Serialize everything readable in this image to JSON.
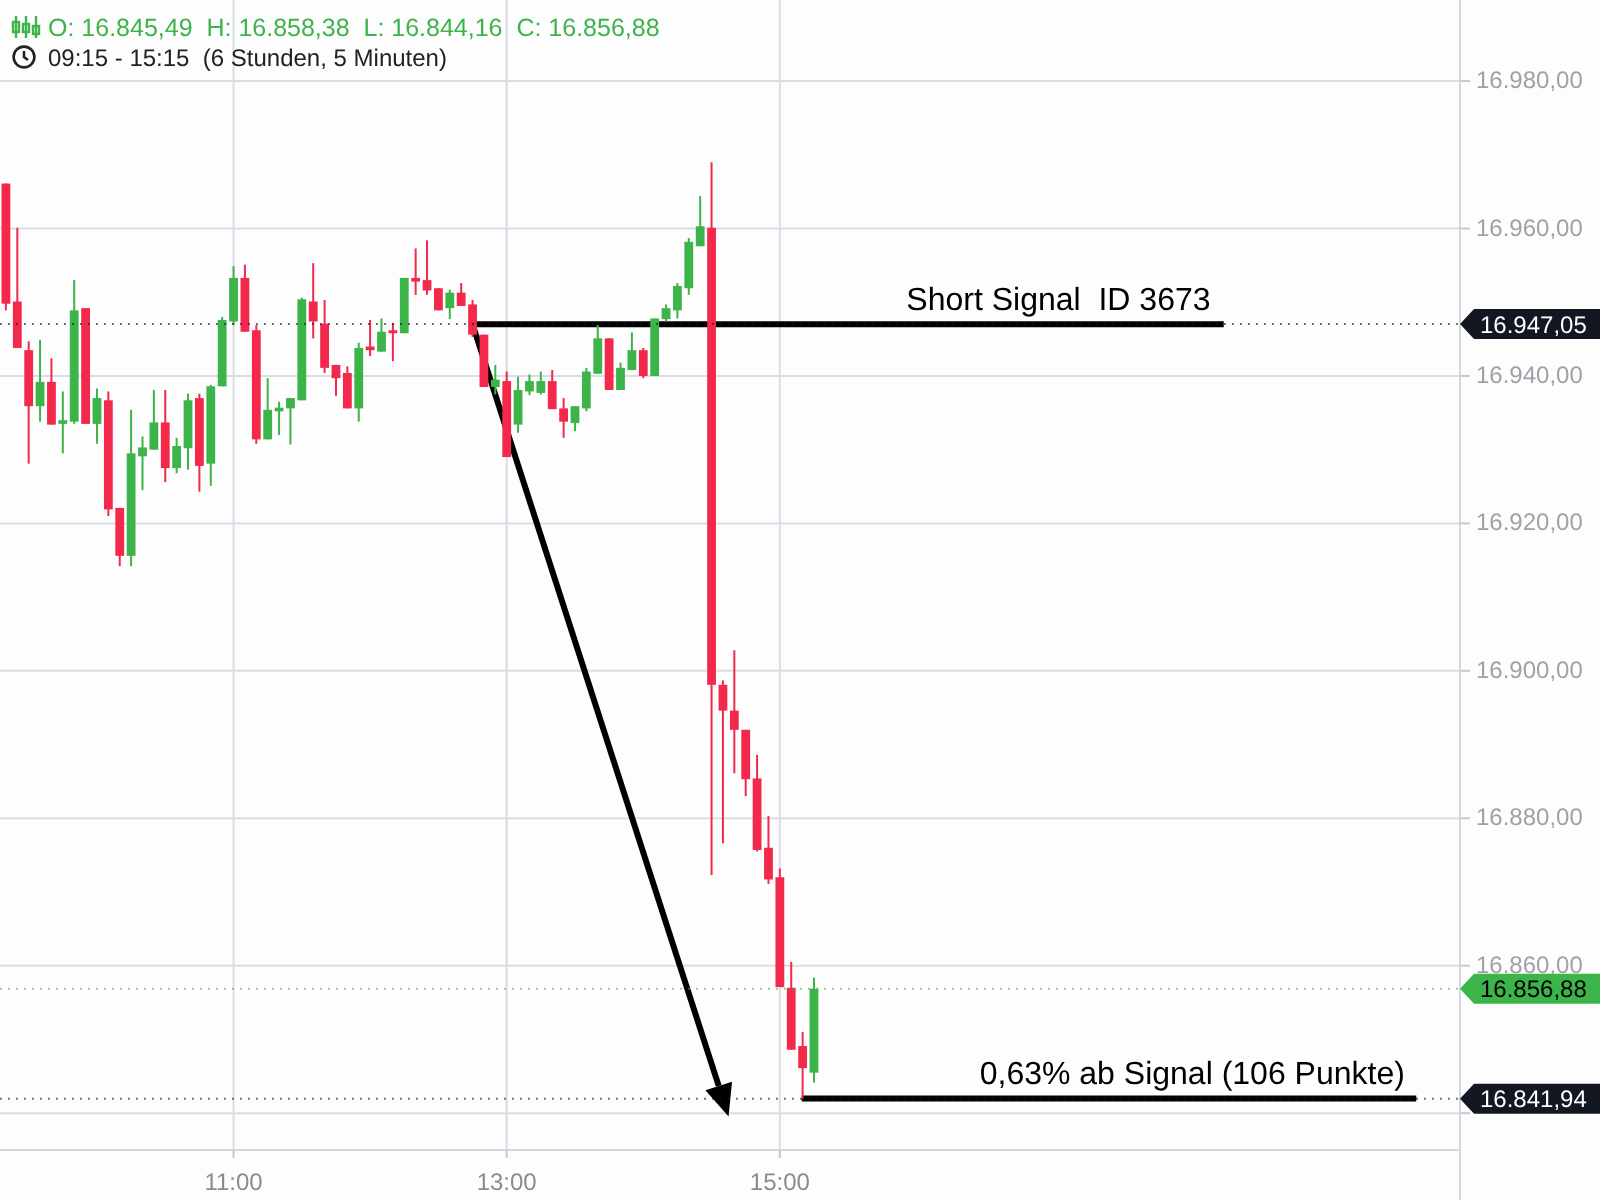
{
  "chart_data": {
    "type": "candlestick",
    "title": "O: 16.845,49  H: 16.858,38  L: 16.844,16  C: 16.856,88",
    "subtitle": "09:15 - 15:15  (6 Stunden, 5 Minuten)",
    "x": [
      9.3333,
      9.4167,
      9.5,
      9.5833,
      9.6667,
      9.75,
      9.8333,
      9.9167,
      10,
      10.0833,
      10.1667,
      10.25,
      10.3333,
      10.4167,
      10.5,
      10.5833,
      10.6667,
      10.75,
      10.8333,
      10.9167,
      11,
      11.0833,
      11.1667,
      11.25,
      11.3333,
      11.4167,
      11.5,
      11.5833,
      11.6667,
      11.75,
      11.8333,
      11.9167,
      12,
      12.0833,
      12.1667,
      12.25,
      12.3333,
      12.4167,
      12.5,
      12.5833,
      12.6667,
      12.75,
      12.8333,
      12.9167,
      13,
      13.0833,
      13.1667,
      13.25,
      13.3333,
      13.4167,
      13.5,
      13.5833,
      13.6667,
      13.75,
      13.8333,
      13.9167,
      14,
      14.0833,
      14.1667,
      14.25,
      14.3333,
      14.4167,
      14.5,
      14.5833,
      14.6667,
      14.75,
      14.8333,
      14.9167,
      15,
      15.0833,
      15.1667,
      15.25
    ],
    "ohlc": [
      [
        16966.1,
        16966.1,
        16948.9,
        16949.8
      ],
      [
        16950.1,
        16960.1,
        16943.8,
        16943.8
      ],
      [
        16943.5,
        16944.7,
        16928.1,
        16935.9
      ],
      [
        16935.9,
        16944.9,
        16933.8,
        16939.2
      ],
      [
        16939.2,
        16942.4,
        16933.4,
        16933.4
      ],
      [
        16933.5,
        16937.9,
        16929.5,
        16934.0
      ],
      [
        16933.8,
        16953.0,
        16933.5,
        16948.9
      ],
      [
        16949.2,
        16949.2,
        16933.5,
        16933.5
      ],
      [
        16933.5,
        16938.3,
        16930.8,
        16937.0
      ],
      [
        16936.7,
        16937.9,
        16921.0,
        16921.9
      ],
      [
        16922.1,
        16922.1,
        16914.2,
        16915.6
      ],
      [
        16915.6,
        16935.4,
        16914.2,
        16929.5
      ],
      [
        16929.1,
        16931.8,
        16924.5,
        16930.3
      ],
      [
        16930.0,
        16938.1,
        16930.0,
        16933.7
      ],
      [
        16933.7,
        16938.1,
        16925.6,
        16927.5
      ],
      [
        16927.5,
        16931.6,
        16926.8,
        16930.5
      ],
      [
        16930.2,
        16937.6,
        16927.3,
        16936.7
      ],
      [
        16937.0,
        16937.6,
        16924.3,
        16927.8
      ],
      [
        16928.1,
        16938.8,
        16925.1,
        16938.6
      ],
      [
        16938.6,
        16948.0,
        16938.6,
        16947.6
      ],
      [
        16947.4,
        16954.9,
        16946.9,
        16953.3
      ],
      [
        16953.3,
        16955.1,
        16946.0,
        16946.0
      ],
      [
        16946.2,
        16946.9,
        16930.8,
        16931.4
      ],
      [
        16931.4,
        16939.7,
        16931.4,
        16935.4
      ],
      [
        16935.2,
        16936.5,
        16932.0,
        16935.7
      ],
      [
        16935.6,
        16937.0,
        16930.7,
        16937.0
      ],
      [
        16936.7,
        16950.6,
        16936.7,
        16950.4
      ],
      [
        16950.1,
        16955.3,
        16945.1,
        16947.4
      ],
      [
        16947.1,
        16950.3,
        16940.4,
        16941.1
      ],
      [
        16941.5,
        16941.5,
        16937.3,
        16939.7
      ],
      [
        16940.4,
        16941.3,
        16935.6,
        16935.6
      ],
      [
        16935.6,
        16944.5,
        16933.8,
        16943.8
      ],
      [
        16944.0,
        16947.6,
        16942.7,
        16943.5
      ],
      [
        16943.3,
        16947.8,
        16943.3,
        16946.0
      ],
      [
        16946.2,
        16947.2,
        16942.0,
        16945.8
      ],
      [
        16945.8,
        16953.3,
        16945.8,
        16953.3
      ],
      [
        16953.3,
        16957.3,
        16951.0,
        16952.8
      ],
      [
        16953.0,
        16958.4,
        16951.0,
        16951.6
      ],
      [
        16951.9,
        16951.9,
        16948.9,
        16948.9
      ],
      [
        16949.2,
        16951.7,
        16947.7,
        16951.3
      ],
      [
        16951.3,
        16952.6,
        16949.5,
        16949.5
      ],
      [
        16949.7,
        16950.3,
        16945.3,
        16945.6
      ],
      [
        16945.6,
        16945.6,
        16938.5,
        16938.5
      ],
      [
        16938.5,
        16941.5,
        16937.5,
        16939.5
      ],
      [
        16939.3,
        16940.6,
        16929.0,
        16929.0
      ],
      [
        16933.4,
        16939.9,
        16932.3,
        16938.1
      ],
      [
        16937.9,
        16940.2,
        16937.4,
        16939.3
      ],
      [
        16937.7,
        16940.6,
        16937.5,
        16939.3
      ],
      [
        16939.3,
        16940.8,
        16935.5,
        16935.5
      ],
      [
        16935.6,
        16937.0,
        16931.6,
        16933.8
      ],
      [
        16933.6,
        16935.9,
        16932.5,
        16935.9
      ],
      [
        16935.6,
        16941.1,
        16935.2,
        16940.6
      ],
      [
        16940.3,
        16946.9,
        16940.3,
        16945.1
      ],
      [
        16945.1,
        16945.1,
        16938.1,
        16938.1
      ],
      [
        16938.1,
        16941.8,
        16938.1,
        16941.1
      ],
      [
        16940.8,
        16945.9,
        16940.8,
        16943.5
      ],
      [
        16943.5,
        16943.8,
        16939.7,
        16940.0
      ],
      [
        16940.0,
        16947.8,
        16940.0,
        16947.8
      ],
      [
        16947.7,
        16949.7,
        16947.4,
        16949.2
      ],
      [
        16948.9,
        16952.6,
        16947.8,
        16952.2
      ],
      [
        16951.9,
        16958.7,
        16951.0,
        16958.2
      ],
      [
        16957.6,
        16964.4,
        16957.6,
        16960.3
      ],
      [
        16960.1,
        16969.0,
        16872.3,
        16898.1
      ],
      [
        16898.1,
        16898.7,
        16876.6,
        16894.6
      ],
      [
        16894.6,
        16902.8,
        16886.1,
        16892.0
      ],
      [
        16892.0,
        16892.0,
        16883.0,
        16885.3
      ],
      [
        16885.4,
        16888.6,
        16875.5,
        16875.7
      ],
      [
        16876.0,
        16880.3,
        16871.1,
        16871.7
      ],
      [
        16872.0,
        16873.2,
        16857.1,
        16857.1
      ],
      [
        16857.0,
        16860.5,
        16848.6,
        16848.6
      ],
      [
        16849.1,
        16851.0,
        16841.94,
        16846.1
      ],
      [
        16845.49,
        16858.38,
        16844.16,
        16856.88
      ]
    ],
    "colors": [
      "#f2294b",
      "#f2294b",
      "#f2294b",
      "#3cb44a",
      "#f2294b",
      "#3cb44a",
      "#3cb44a",
      "#f2294b",
      "#3cb44a",
      "#f2294b",
      "#f2294b",
      "#3cb44a",
      "#3cb44a",
      "#3cb44a",
      "#f2294b",
      "#3cb44a",
      "#3cb44a",
      "#f2294b",
      "#3cb44a",
      "#3cb44a",
      "#3cb44a",
      "#f2294b",
      "#f2294b",
      "#3cb44a",
      "#3cb44a",
      "#3cb44a",
      "#3cb44a",
      "#f2294b",
      "#f2294b",
      "#f2294b",
      "#f2294b",
      "#3cb44a",
      "#f2294b",
      "#3cb44a",
      "#f2294b",
      "#3cb44a",
      "#f2294b",
      "#f2294b",
      "#f2294b",
      "#3cb44a",
      "#f2294b",
      "#f2294b",
      "#f2294b",
      "#3cb44a",
      "#f2294b",
      "#3cb44a",
      "#3cb44a",
      "#3cb44a",
      "#f2294b",
      "#f2294b",
      "#3cb44a",
      "#3cb44a",
      "#3cb44a",
      "#f2294b",
      "#3cb44a",
      "#3cb44a",
      "#f2294b",
      "#3cb44a",
      "#3cb44a",
      "#3cb44a",
      "#3cb44a",
      "#3cb44a",
      "#f2294b",
      "#f2294b",
      "#f2294b",
      "#f2294b",
      "#f2294b",
      "#f2294b",
      "#f2294b",
      "#f2294b",
      "#f2294b",
      "#3cb44a"
    ],
    "series": [
      {
        "type": "line",
        "x": [
          12.75,
          18.25
        ],
        "values": [
          16947,
          16947
        ],
        "color": "#000000"
      },
      {
        "type": "line",
        "x": [
          15.16,
          19.66
        ],
        "values": [
          16842,
          16842
        ],
        "color": "#000000"
      }
    ],
    "ref_lines": [
      {
        "axis": "y",
        "value": 16947.05,
        "label": "16.947,05",
        "color": "#131722"
      },
      {
        "axis": "y",
        "value": 16856.88,
        "label": "16.856,88",
        "color": "#3cb44a"
      },
      {
        "axis": "y",
        "value": 16841.94,
        "label": "16.841,94",
        "color": "#131722"
      }
    ],
    "annotations": [
      {
        "text": "Short Signal  ID 3673",
        "x": 17.04,
        "y": 16947
      },
      {
        "text": "0,63% ab Signal (106 Punkte)",
        "x": 18.02,
        "y": 16842
      }
    ],
    "xlim": [
      9.29,
      19.98
    ],
    "ylim": [
      16835,
      16991
    ],
    "xticks": [
      {
        "value": 11,
        "label": "11:00"
      },
      {
        "value": 13,
        "label": "13:00"
      },
      {
        "value": 15,
        "label": "15:00"
      }
    ],
    "yticks": [
      {
        "value": 16840,
        "label": null
      },
      {
        "value": 16860,
        "label": "16.860,00"
      },
      {
        "value": 16880,
        "label": "16.880,00"
      },
      {
        "value": 16900,
        "label": "16.900,00"
      },
      {
        "value": 16920,
        "label": "16.920,00"
      },
      {
        "value": 16940,
        "label": "16.940,00"
      },
      {
        "value": 16960,
        "label": "16.960,00"
      },
      {
        "value": 16980,
        "label": "16.980,00"
      }
    ],
    "grid": true
  }
}
